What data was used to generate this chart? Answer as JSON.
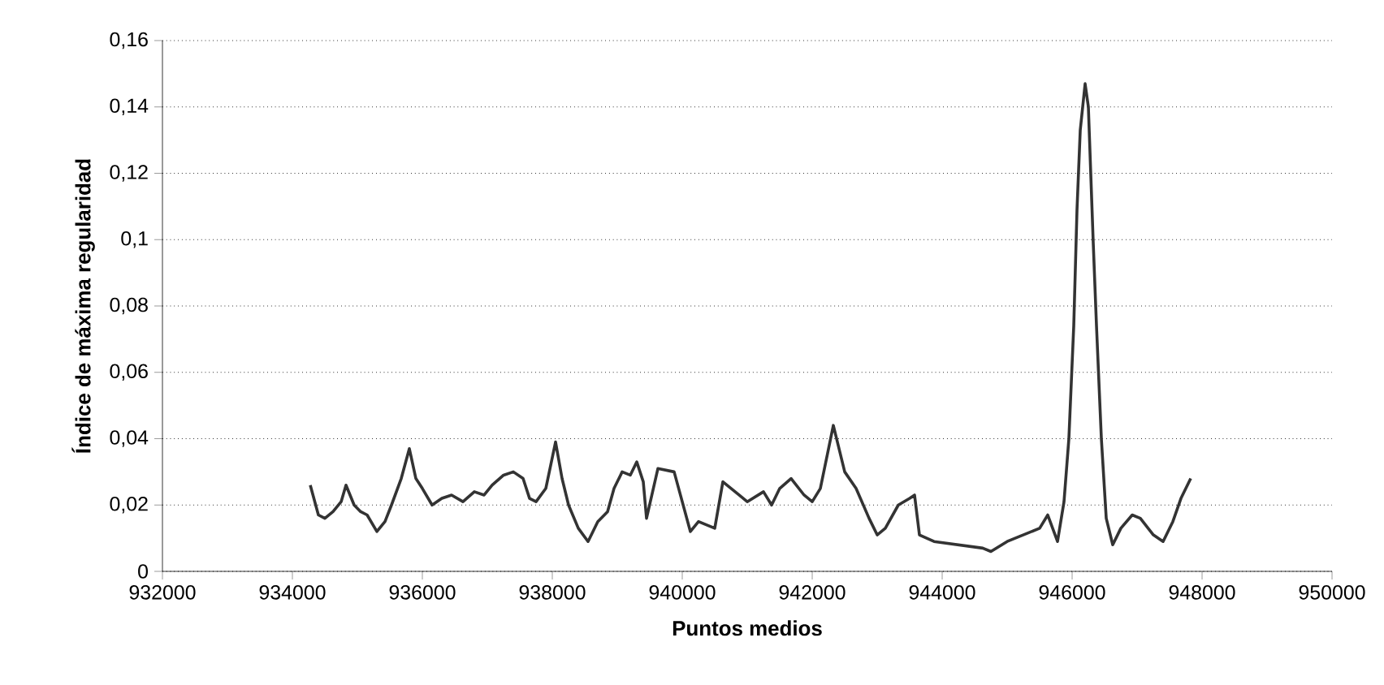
{
  "chart_data": {
    "type": "line",
    "xlabel": "Puntos medios",
    "ylabel": "Índice de máxima regularidad",
    "x": [
      934275,
      934400,
      934500,
      934625,
      934750,
      934825,
      934950,
      935050,
      935150,
      935300,
      935425,
      935525,
      935675,
      935800,
      935900,
      936000,
      936150,
      936300,
      936450,
      936625,
      936800,
      936950,
      937075,
      937250,
      937400,
      937550,
      937650,
      937750,
      937900,
      938050,
      938150,
      938250,
      938400,
      938550,
      938700,
      938850,
      938950,
      939075,
      939200,
      939300,
      939400,
      939450,
      939625,
      939875,
      940125,
      940250,
      940500,
      940625,
      940875,
      941000,
      941250,
      941375,
      941500,
      941675,
      941875,
      942000,
      942125,
      942325,
      942500,
      942675,
      942875,
      943000,
      943125,
      943325,
      943500,
      943575,
      943650,
      943875,
      944250,
      944625,
      944750,
      945000,
      945500,
      945625,
      945775,
      945875,
      945950,
      946025,
      946075,
      946125,
      946200,
      946250,
      946325,
      946375,
      946450,
      946525,
      946625,
      946750,
      946925,
      947050,
      947250,
      947400,
      947550,
      947675,
      947825
    ],
    "series": [
      {
        "color": "#333333",
        "values": [
          0.026,
          0.017,
          0.016,
          0.018,
          0.021,
          0.026,
          0.02,
          0.018,
          0.017,
          0.012,
          0.015,
          0.02,
          0.028,
          0.037,
          0.028,
          0.025,
          0.02,
          0.022,
          0.023,
          0.021,
          0.024,
          0.023,
          0.026,
          0.029,
          0.03,
          0.028,
          0.022,
          0.021,
          0.025,
          0.039,
          0.028,
          0.02,
          0.013,
          0.009,
          0.015,
          0.018,
          0.025,
          0.03,
          0.029,
          0.033,
          0.027,
          0.016,
          0.031,
          0.03,
          0.012,
          0.015,
          0.013,
          0.027,
          0.023,
          0.021,
          0.024,
          0.02,
          0.025,
          0.028,
          0.023,
          0.021,
          0.025,
          0.044,
          0.03,
          0.025,
          0.016,
          0.011,
          0.013,
          0.02,
          0.022,
          0.023,
          0.011,
          0.009,
          0.008,
          0.007,
          0.006,
          0.009,
          0.013,
          0.017,
          0.009,
          0.021,
          0.04,
          0.074,
          0.109,
          0.133,
          0.147,
          0.14,
          0.099,
          0.074,
          0.04,
          0.016,
          0.008,
          0.013,
          0.017,
          0.016,
          0.011,
          0.009,
          0.015,
          0.022,
          0.028
        ]
      }
    ],
    "xlim": [
      932000,
      950000
    ],
    "xticks": [
      932000,
      934000,
      936000,
      938000,
      940000,
      942000,
      944000,
      946000,
      948000,
      950000
    ],
    "ylim": [
      0,
      0.16
    ],
    "yticks": [
      0,
      {
        "value": 0.02,
        "label": "0,02"
      },
      {
        "value": 0.04,
        "label": "0,04"
      },
      {
        "value": 0.06,
        "label": "0,06"
      },
      {
        "value": 0.08,
        "label": "0,08"
      },
      {
        "value": 0.1,
        "label": "0,1"
      },
      {
        "value": 0.12,
        "label": "0,12"
      },
      {
        "value": 0.14,
        "label": "0,14"
      },
      {
        "value": 0.16,
        "label": "0,16"
      }
    ],
    "grid": "y",
    "marker": "none",
    "line_style": "solid"
  }
}
